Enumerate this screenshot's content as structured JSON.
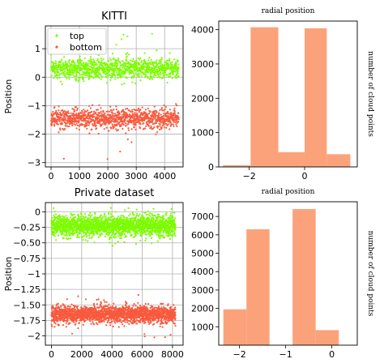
{
  "chart_data": [
    {
      "type": "scatter",
      "title": "KITTI",
      "xlabel": "",
      "ylabel": "Position",
      "xlim": [
        -200,
        4650
      ],
      "ylim": [
        -3.15,
        1.8
      ],
      "xticks": [
        0,
        1000,
        2000,
        3000,
        4000
      ],
      "yticks": [
        -3,
        -2,
        -1,
        0,
        1
      ],
      "grid": true,
      "legend": "top-left",
      "n_points": 4500,
      "series": [
        {
          "name": "top",
          "color": "#7cfc00",
          "center": 0.3,
          "spread": 0.32,
          "min": -0.25,
          "max": 1.6
        },
        {
          "name": "bottom",
          "color": "#f85a3e",
          "center": -1.45,
          "spread": 0.32,
          "min": -2.9,
          "max": -0.85
        }
      ]
    },
    {
      "type": "bar",
      "title": "radial position",
      "xlabel": "",
      "ylabel": "number of cloud points",
      "color": "#fca27a",
      "xlim": [
        -3.1,
        1.9
      ],
      "ylim": [
        0,
        4250
      ],
      "xticks": [
        -2,
        0
      ],
      "yticks": [
        0,
        1000,
        2000,
        3000,
        4000
      ],
      "bins": [
        {
          "from": -2.95,
          "to": -1.95,
          "value": 50
        },
        {
          "from": -1.95,
          "to": -0.95,
          "value": 4070
        },
        {
          "from": -0.95,
          "to": 0.0,
          "value": 430
        },
        {
          "from": 0.0,
          "to": 0.8,
          "value": 4040
        },
        {
          "from": 0.8,
          "to": 1.65,
          "value": 370
        }
      ]
    },
    {
      "type": "scatter",
      "title": "Private dataset",
      "xlabel": "",
      "ylabel": "Position",
      "xlim": [
        -400,
        8700
      ],
      "ylim": [
        -2.15,
        0.15
      ],
      "xticks": [
        0,
        2000,
        4000,
        6000,
        8000
      ],
      "yticks": [
        -2.0,
        -1.75,
        -1.5,
        -1.25,
        -1.0,
        -0.75,
        -0.5,
        -0.25,
        0.0
      ],
      "grid": true,
      "n_points": 8200,
      "series": [
        {
          "name": "top",
          "color": "#7cfc00",
          "center": -0.22,
          "spread": 0.15,
          "min": -0.55,
          "max": 0.08
        },
        {
          "name": "bottom",
          "color": "#f85a3e",
          "center": -1.65,
          "spread": 0.12,
          "min": -2.05,
          "max": -1.3
        }
      ]
    },
    {
      "type": "bar",
      "title": "radial position",
      "xlabel": "",
      "ylabel": "number of cloud points",
      "color": "#fca27a",
      "xlim": [
        -2.45,
        0.55
      ],
      "ylim": [
        0,
        7800
      ],
      "xticks": [
        -2,
        -1,
        0
      ],
      "yticks": [
        1000,
        2000,
        3000,
        4000,
        5000,
        6000,
        7000
      ],
      "bins": [
        {
          "from": -2.35,
          "to": -1.85,
          "value": 1950
        },
        {
          "from": -1.85,
          "to": -1.35,
          "value": 6300
        },
        {
          "from": -1.35,
          "to": -0.85,
          "value": 0
        },
        {
          "from": -0.85,
          "to": -0.35,
          "value": 7400
        },
        {
          "from": -0.35,
          "to": 0.15,
          "value": 820
        }
      ]
    }
  ]
}
